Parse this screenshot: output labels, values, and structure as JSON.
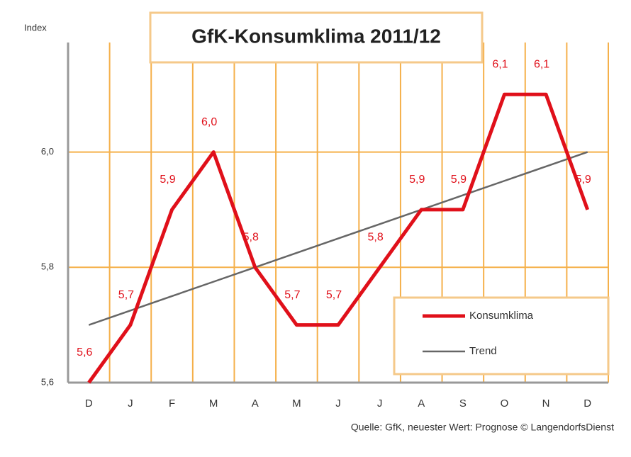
{
  "chart_data": {
    "type": "line",
    "title": "GfK-Konsumklima 2011/12",
    "y_label": "Index",
    "source": "Quelle: GfK, neuester Wert: Prognose © LangendorfsDienst",
    "categories": [
      "D",
      "J",
      "F",
      "M",
      "A",
      "M",
      "J",
      "J",
      "A",
      "S",
      "O",
      "N",
      "D"
    ],
    "series": [
      {
        "name": "Konsumklima",
        "color": "#e0101a",
        "values": [
          5.6,
          5.7,
          5.9,
          6.0,
          5.8,
          5.7,
          5.7,
          5.8,
          5.9,
          5.9,
          6.1,
          6.1,
          5.9
        ],
        "value_labels": [
          "5,6",
          "5,7",
          "5,9",
          "6,0",
          "5,8",
          "5,7",
          "5,7",
          "5,8",
          "5,9",
          "5,9",
          "6,1",
          "6,1",
          "5,9"
        ]
      },
      {
        "name": "Trend",
        "color": "#666666",
        "values": [
          5.7,
          5.725,
          5.75,
          5.775,
          5.8,
          5.825,
          5.85,
          5.875,
          5.9,
          5.925,
          5.95,
          5.975,
          6.0
        ]
      }
    ],
    "ylim": [
      5.6,
      6.19
    ],
    "yticks": [
      {
        "value": 5.6,
        "label": "5,6"
      },
      {
        "value": 5.8,
        "label": "5,8"
      },
      {
        "value": 6.0,
        "label": "6,0"
      }
    ],
    "grid": true,
    "grid_color": "#f5b04a",
    "legend": "lower right"
  }
}
